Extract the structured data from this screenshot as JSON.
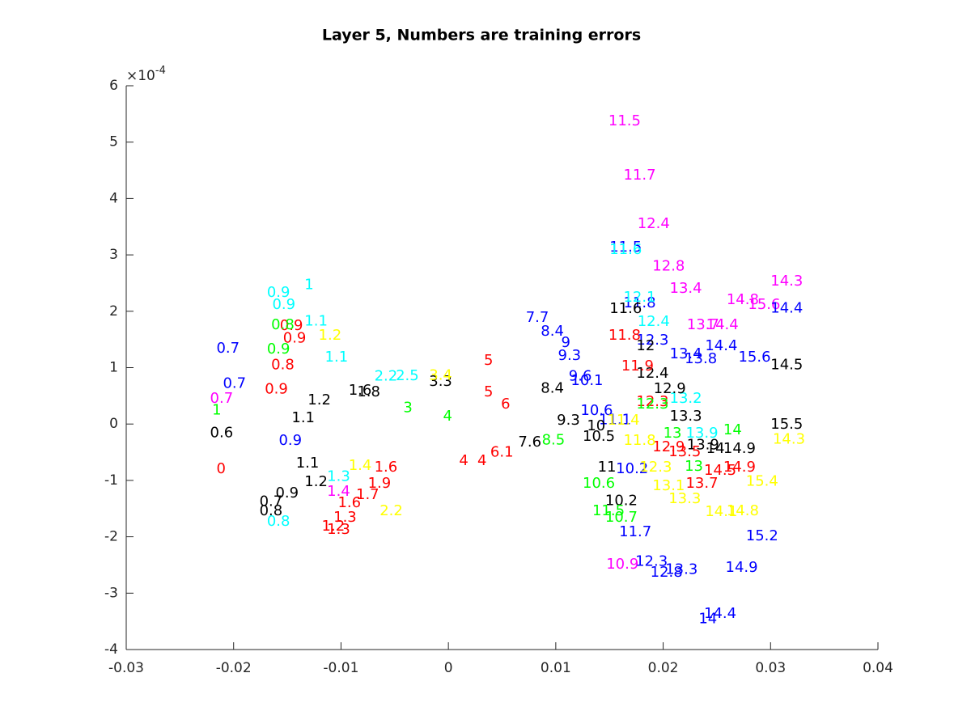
{
  "chart_data": {
    "type": "scatter",
    "title": "Layer 5, Numbers are training errors",
    "y_multiplier": {
      "base": "×10",
      "exponent": "-4"
    },
    "xlim": [
      -0.03,
      0.04
    ],
    "xticks": [
      -0.03,
      -0.02,
      -0.01,
      0,
      0.01,
      0.02,
      0.03,
      0.04
    ],
    "ylim": [
      -4,
      6
    ],
    "yticks": [
      -4,
      -3,
      -2,
      -1,
      0,
      1,
      2,
      3,
      4,
      5,
      6
    ],
    "series": [
      {
        "color": "#ff00ff",
        "x": [
          0.0149,
          0.0163,
          0.0176,
          0.019,
          0.0206,
          0.03,
          0.0259,
          0.0279,
          0.0222,
          0.024,
          0.0147,
          -0.0113,
          -0.0222
        ],
        "y": [
          5.37,
          4.41,
          3.55,
          2.79,
          2.4,
          2.53,
          2.2,
          2.11,
          1.75,
          1.75,
          -2.49,
          -1.2,
          0.45
        ],
        "labels": [
          11.5,
          11.7,
          12.4,
          12.8,
          13.4,
          14.3,
          14.8,
          15.6,
          13.7,
          14.4,
          10.9,
          1.4,
          0.7
        ]
      },
      {
        "color": "#0000ff",
        "x": [
          0.015,
          0.0163,
          0.0175,
          0.0206,
          0.0239,
          0.027,
          0.022,
          0.0072,
          0.0086,
          0.0105,
          0.0102,
          0.0112,
          0.0114,
          0.0123,
          0.014,
          0.0156,
          0.0159,
          0.0174,
          0.0202,
          0.0188,
          0.0258,
          0.0277,
          0.0238,
          0.0233,
          0.03,
          -0.0216,
          -0.021,
          -0.0158
        ],
        "y": [
          3.13,
          2.14,
          1.48,
          1.24,
          1.38,
          1.18,
          1.15,
          1.88,
          1.64,
          1.44,
          1.21,
          0.84,
          0.76,
          0.23,
          0.07,
          -0.8,
          -1.92,
          -2.44,
          -2.59,
          -2.64,
          -2.55,
          -1.99,
          -3.37,
          -3.46,
          2.05,
          1.34,
          0.71,
          -0.3
        ],
        "labels": [
          11.5,
          11.8,
          12.3,
          13.4,
          14.4,
          15.6,
          13.8,
          7.7,
          8.4,
          9,
          9.3,
          9.6,
          10.1,
          10.6,
          11.1,
          10.2,
          11.7,
          12.3,
          13.3,
          12.8,
          14.9,
          15.2,
          14.4,
          14,
          14.4,
          0.7,
          0.7,
          0.9
        ]
      },
      {
        "color": "#00ffff",
        "x": [
          0.015,
          0.0163,
          0.0176,
          0.0206,
          0.0221,
          -0.0169,
          -0.0164,
          -0.0134,
          -0.0134,
          -0.0115,
          -0.0169,
          -0.0113,
          -0.0069,
          -0.0049
        ],
        "y": [
          3.09,
          2.24,
          1.81,
          0.45,
          -0.17,
          2.33,
          2.11,
          2.46,
          1.82,
          1.18,
          -1.73,
          -0.94,
          0.84,
          0.85
        ],
        "labels": [
          11.6,
          12.1,
          12.4,
          13.2,
          13.9,
          0.9,
          0.9,
          1,
          1.1,
          1.1,
          0.8,
          1.3,
          2.2,
          2.5
        ]
      },
      {
        "color": "#000000",
        "x": [
          0.015,
          0.0175,
          0.0175,
          0.0191,
          0.0206,
          0.03,
          0.03,
          0.0222,
          0.024,
          0.0256,
          0.0125,
          0.0146,
          0.0139,
          -0.0134,
          -0.0142,
          -0.0176,
          -0.0161,
          -0.0176,
          -0.0222,
          -0.0085,
          -0.0093,
          -0.0018,
          0.0065,
          0.0086,
          0.0101,
          0.0129,
          -0.0146,
          -0.0131
        ],
        "y": [
          2.04,
          1.38,
          0.89,
          0.62,
          0.13,
          -0.01,
          1.04,
          -0.38,
          -0.44,
          -0.44,
          -0.23,
          -1.37,
          -0.77,
          -1.03,
          -0.7,
          -1.55,
          -1.23,
          -1.38,
          -0.16,
          0.56,
          0.59,
          0.75,
          -0.33,
          0.63,
          0.06,
          -0.04,
          0.1,
          0.42
        ],
        "labels": [
          11.6,
          12,
          12.4,
          12.9,
          13.3,
          15.5,
          14.5,
          13.9,
          14,
          14.9,
          10.5,
          10.2,
          11,
          1.2,
          1.1,
          0.8,
          0.9,
          0.7,
          0.6,
          1.8,
          1.6,
          3.3,
          7.6,
          8.4,
          9.3,
          10,
          1.1,
          1.2
        ]
      },
      {
        "color": "#ff0000",
        "x": [
          0.0149,
          0.0161,
          0.0175,
          0.019,
          0.0205,
          0.0238,
          0.0256,
          0.0221,
          0.0033,
          0.0033,
          -0.0107,
          -0.0113,
          -0.0118,
          -0.0103,
          -0.0086,
          -0.0075,
          -0.0069,
          -0.0157,
          -0.0154,
          -0.0165,
          -0.0171,
          -0.0216,
          0.001,
          0.0027,
          0.0039,
          0.0049
        ],
        "y": [
          1.57,
          1.02,
          0.39,
          -0.41,
          -0.5,
          -0.83,
          -0.77,
          -1.06,
          1.12,
          0.56,
          -1.66,
          -1.88,
          -1.82,
          -1.4,
          -1.26,
          -1.06,
          -0.77,
          1.74,
          1.52,
          1.04,
          0.61,
          -0.8,
          -0.66,
          -0.66,
          -0.51,
          0.35
        ],
        "labels": [
          11.8,
          11.9,
          12.3,
          12.9,
          13.5,
          14.5,
          14.9,
          13.7,
          5,
          5,
          1.3,
          1.3,
          1.2,
          1.6,
          1.7,
          1.9,
          1.6,
          0.9,
          0.9,
          0.8,
          0.9,
          0,
          4,
          4,
          6.1,
          6
        ]
      },
      {
        "color": "#00ff00",
        "x": [
          0.0175,
          0.02,
          0.0256,
          0.022,
          0.0146,
          0.0125,
          0.0134,
          -0.0165,
          -0.0169,
          -0.022,
          0.0087,
          -0.0042,
          -0.0005
        ],
        "y": [
          0.35,
          -0.17,
          -0.11,
          -0.76,
          -1.66,
          -1.06,
          -1.55,
          1.75,
          1.32,
          0.24,
          -0.29,
          0.28,
          0.13
        ],
        "labels": [
          12.3,
          13,
          14,
          13,
          10.7,
          10.6,
          11.5,
          0.8,
          0.9,
          1,
          8.5,
          3,
          4
        ]
      },
      {
        "color": "#ffff00",
        "x": [
          0.0148,
          0.0163,
          0.0178,
          0.019,
          0.0205,
          0.0239,
          0.0259,
          0.0277,
          0.0302,
          -0.0064,
          -0.0018,
          -0.0121,
          -0.0093
        ],
        "y": [
          0.06,
          -0.3,
          -0.77,
          -1.1,
          -1.33,
          -1.56,
          -1.55,
          -1.02,
          -0.28,
          -1.55,
          0.86,
          1.57,
          -0.74
        ],
        "labels": [
          11.4,
          11.8,
          12.3,
          13.1,
          13.3,
          14.1,
          14.8,
          15.4,
          14.3,
          2.2,
          3.4,
          1.2,
          1.4
        ]
      }
    ]
  }
}
